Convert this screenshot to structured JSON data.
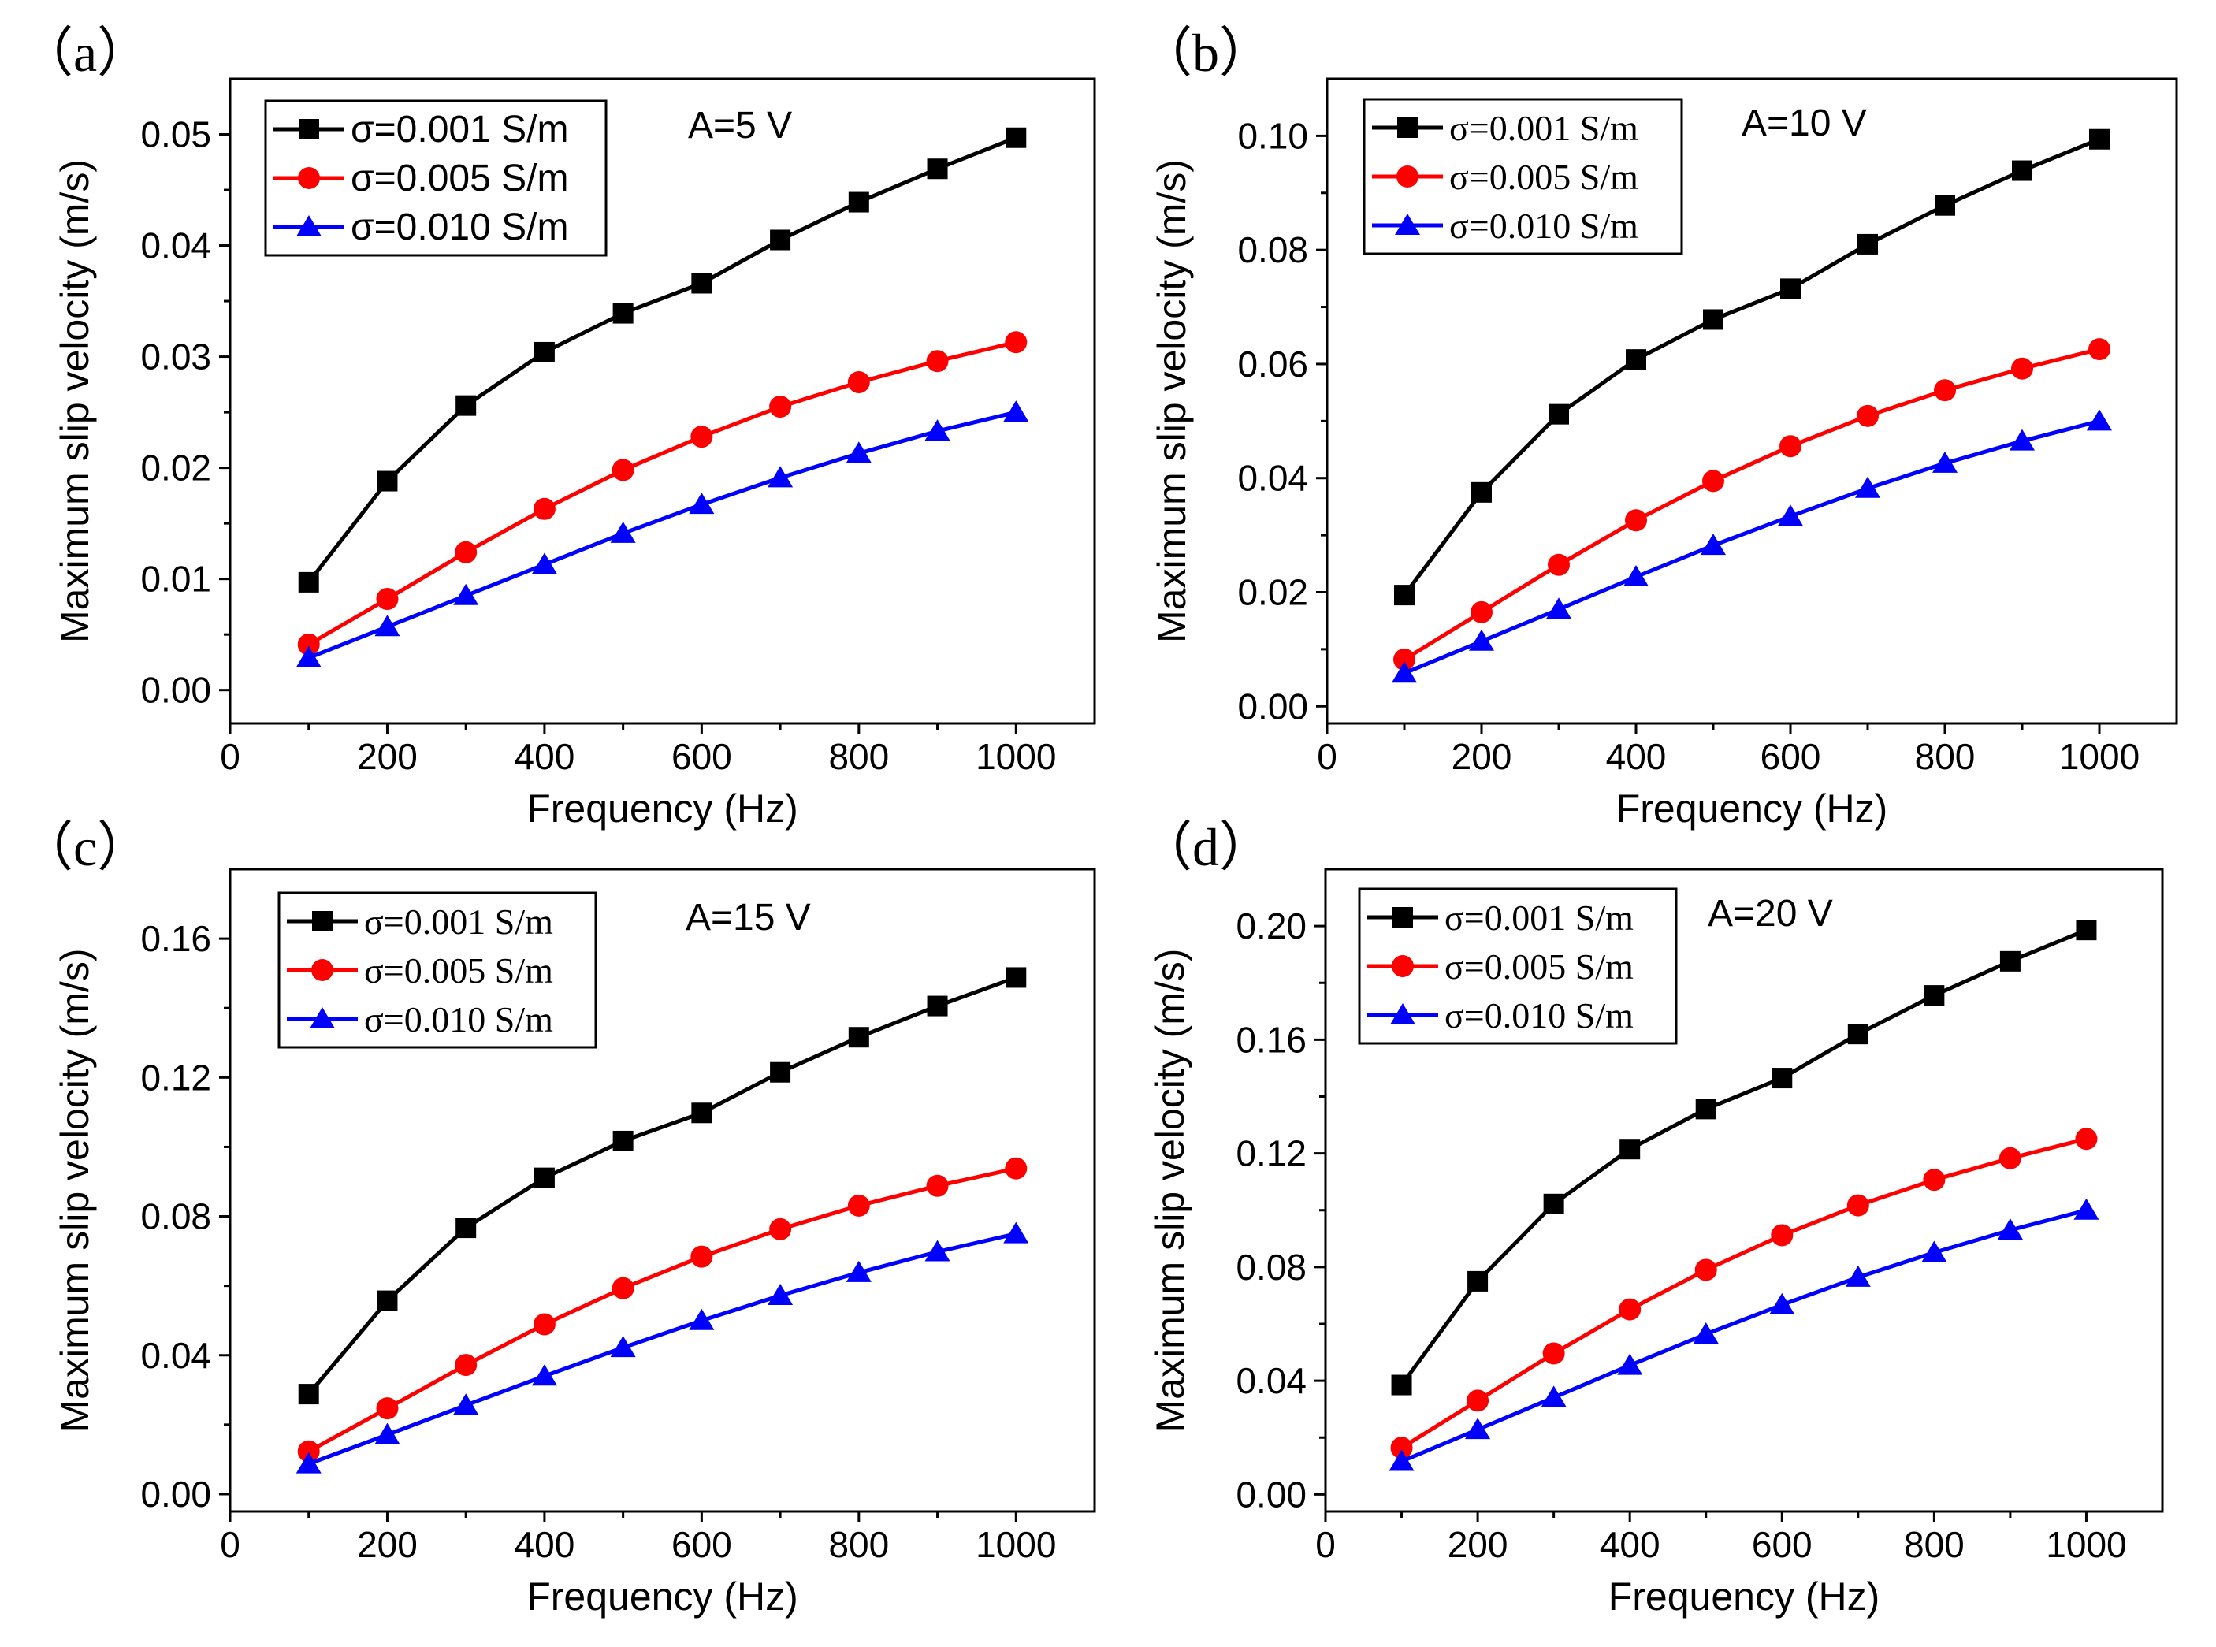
{
  "chart_data": [
    {
      "type": "line",
      "panel_label": "（a）",
      "annotation": "A=5 V",
      "xlabel": "Frequency (Hz)",
      "ylabel": "Maximum slip velocity (m/s)",
      "xlim": [
        0,
        1100
      ],
      "ylim": [
        -0.003,
        0.055
      ],
      "xticks": [
        0,
        200,
        400,
        600,
        800,
        1000
      ],
      "xtick_labels": [
        "0",
        "200",
        "400",
        "600",
        "800",
        "1000"
      ],
      "yticks": [
        0.0,
        0.01,
        0.02,
        0.03,
        0.04,
        0.05
      ],
      "ytick_labels": [
        "0.00",
        "0.01",
        "0.02",
        "0.03",
        "0.04",
        "0.05"
      ],
      "legend_font": "sans",
      "x": [
        100,
        200,
        300,
        400,
        500,
        600,
        700,
        800,
        900,
        1000
      ],
      "series": [
        {
          "name": "σ=0.001 S/m",
          "color": "#000000",
          "marker": "square",
          "values": [
            0.0097,
            0.0188,
            0.0256,
            0.0304,
            0.0339,
            0.0366,
            0.0405,
            0.0439,
            0.0469,
            0.0497
          ]
        },
        {
          "name": "σ=0.005 S/m",
          "color": "#ff0000",
          "marker": "circle",
          "values": [
            0.0041,
            0.0082,
            0.0124,
            0.0163,
            0.0198,
            0.0228,
            0.0255,
            0.0277,
            0.0296,
            0.0313
          ]
        },
        {
          "name": "σ=0.010 S/m",
          "color": "#0000ff",
          "marker": "triangle",
          "values": [
            0.0029,
            0.0057,
            0.0085,
            0.0113,
            0.0141,
            0.0167,
            0.0191,
            0.0213,
            0.0233,
            0.025
          ]
        }
      ]
    },
    {
      "type": "line",
      "panel_label": "（b）",
      "annotation": "A=10 V",
      "xlabel": "Frequency (Hz)",
      "ylabel": "Maximum slip velocity (m/s)",
      "xlim": [
        0,
        1100
      ],
      "ylim": [
        -0.003,
        0.11
      ],
      "xticks": [
        0,
        200,
        400,
        600,
        800,
        1000
      ],
      "xtick_labels": [
        "0",
        "200",
        "400",
        "600",
        "800",
        "1000"
      ],
      "yticks": [
        0.0,
        0.02,
        0.04,
        0.06,
        0.08,
        0.1
      ],
      "ytick_labels": [
        "0.00",
        "0.02",
        "0.04",
        "0.06",
        "0.08",
        "0.10"
      ],
      "legend_font": "serif",
      "x": [
        100,
        200,
        300,
        400,
        500,
        600,
        700,
        800,
        900,
        1000
      ],
      "series": [
        {
          "name": "σ=0.001 S/m",
          "color": "#000000",
          "marker": "square",
          "values": [
            0.0195,
            0.0375,
            0.0512,
            0.0608,
            0.0678,
            0.0732,
            0.081,
            0.0878,
            0.0939,
            0.0994
          ]
        },
        {
          "name": "σ=0.005 S/m",
          "color": "#ff0000",
          "marker": "circle",
          "values": [
            0.0082,
            0.0165,
            0.0248,
            0.0326,
            0.0395,
            0.0456,
            0.0509,
            0.0554,
            0.0592,
            0.0626
          ]
        },
        {
          "name": "σ=0.010 S/m",
          "color": "#0000ff",
          "marker": "triangle",
          "values": [
            0.0058,
            0.0114,
            0.017,
            0.0227,
            0.0282,
            0.0333,
            0.0382,
            0.0426,
            0.0465,
            0.05
          ]
        }
      ]
    },
    {
      "type": "line",
      "panel_label": "（c）",
      "annotation": "A=15 V",
      "xlabel": "Frequency (Hz)",
      "ylabel": "Maximum slip velocity (m/s)",
      "xlim": [
        0,
        1100
      ],
      "ylim": [
        -0.005,
        0.18
      ],
      "xticks": [
        0,
        200,
        400,
        600,
        800,
        1000
      ],
      "xtick_labels": [
        "0",
        "200",
        "400",
        "600",
        "800",
        "1000"
      ],
      "yticks": [
        0.0,
        0.04,
        0.08,
        0.12,
        0.16
      ],
      "ytick_labels": [
        "0.00",
        "0.04",
        "0.08",
        "0.12",
        "0.16"
      ],
      "legend_font": "serif",
      "x": [
        100,
        200,
        300,
        400,
        500,
        600,
        700,
        800,
        900,
        1000
      ],
      "series": [
        {
          "name": "σ=0.001 S/m",
          "color": "#000000",
          "marker": "square",
          "values": [
            0.0288,
            0.0557,
            0.0767,
            0.0911,
            0.1017,
            0.1098,
            0.1215,
            0.1316,
            0.1406,
            0.1488
          ]
        },
        {
          "name": "σ=0.005 S/m",
          "color": "#ff0000",
          "marker": "circle",
          "values": [
            0.0123,
            0.0247,
            0.0372,
            0.0489,
            0.0593,
            0.0684,
            0.0763,
            0.0831,
            0.0888,
            0.0938
          ]
        },
        {
          "name": "σ=0.010 S/m",
          "color": "#0000ff",
          "marker": "triangle",
          "values": [
            0.0087,
            0.0171,
            0.0256,
            0.034,
            0.0422,
            0.05,
            0.0572,
            0.0638,
            0.0698,
            0.075
          ]
        }
      ]
    },
    {
      "type": "line",
      "panel_label": "（d）",
      "annotation": "A=20 V",
      "xlabel": "Frequency (Hz)",
      "ylabel": "Maximum slip velocity (m/s)",
      "xlim": [
        0,
        1100
      ],
      "ylim": [
        -0.006,
        0.22
      ],
      "xticks": [
        0,
        200,
        400,
        600,
        800,
        1000
      ],
      "xtick_labels": [
        "0",
        "200",
        "400",
        "600",
        "800",
        "1000"
      ],
      "yticks": [
        0.0,
        0.04,
        0.08,
        0.12,
        0.16,
        0.2
      ],
      "ytick_labels": [
        "0.00",
        "0.04",
        "0.08",
        "0.12",
        "0.16",
        "0.20"
      ],
      "legend_font": "serif",
      "x": [
        100,
        200,
        300,
        400,
        500,
        600,
        700,
        800,
        900,
        1000
      ],
      "series": [
        {
          "name": "σ=0.001 S/m",
          "color": "#000000",
          "marker": "square",
          "values": [
            0.0385,
            0.075,
            0.1022,
            0.1215,
            0.1356,
            0.1465,
            0.162,
            0.1756,
            0.1876,
            0.1986
          ]
        },
        {
          "name": "σ=0.005 S/m",
          "color": "#ff0000",
          "marker": "circle",
          "values": [
            0.0164,
            0.033,
            0.0496,
            0.0651,
            0.079,
            0.0912,
            0.1017,
            0.1107,
            0.1183,
            0.1251
          ]
        },
        {
          "name": "σ=0.010 S/m",
          "color": "#0000ff",
          "marker": "triangle",
          "values": [
            0.0116,
            0.0228,
            0.0341,
            0.0454,
            0.0564,
            0.0667,
            0.0764,
            0.0851,
            0.093,
            0.1
          ]
        }
      ]
    }
  ]
}
